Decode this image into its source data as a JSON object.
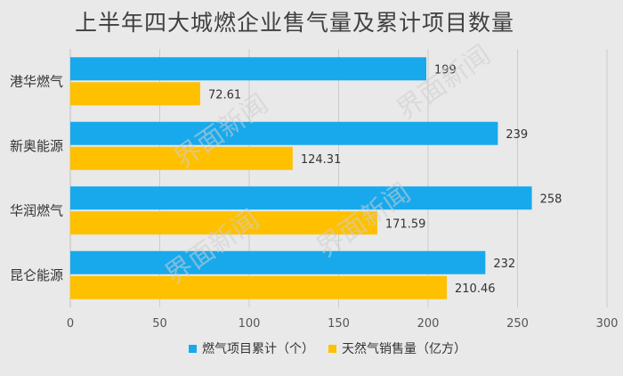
{
  "chart_data": {
    "type": "bar",
    "orientation": "horizontal",
    "title": "上半年四大城燃企业售气量及累计项目数量",
    "categories": [
      "港华燃气",
      "新奥能源",
      "华润燃气",
      "昆仑能源"
    ],
    "series": [
      {
        "name": "燃气项目累计（个）",
        "color": "#17a9ec",
        "values": [
          199,
          239,
          258,
          232
        ]
      },
      {
        "name": "天然气销售量（亿方）",
        "color": "#ffc000",
        "values": [
          72.61,
          124.31,
          171.59,
          210.46
        ]
      }
    ],
    "xlim": [
      0,
      300
    ],
    "xticks": [
      0,
      50,
      100,
      150,
      200,
      250,
      300
    ],
    "legend_position": "bottom",
    "grid": "vertical"
  },
  "watermark": "界面新闻"
}
